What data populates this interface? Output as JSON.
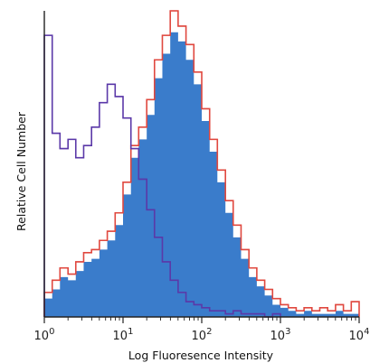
{
  "chart_data": {
    "type": "area",
    "title": "",
    "xlabel": "Log Fluoresence Intensity",
    "ylabel": "Relative Cell Number",
    "x_scale": "log",
    "xlim": [
      1,
      10000
    ],
    "ylim": [
      0,
      100
    ],
    "x_ticks": [
      {
        "value": 1,
        "base": "10",
        "exp": "0"
      },
      {
        "value": 10,
        "base": "10",
        "exp": "1"
      },
      {
        "value": 100,
        "base": "10",
        "exp": "2"
      },
      {
        "value": 1000,
        "base": "10",
        "exp": "3"
      },
      {
        "value": 10000,
        "base": "10",
        "exp": "4"
      }
    ],
    "grid": false,
    "legend": "none",
    "series": [
      {
        "color": "#3a7ccb",
        "style": "filled",
        "x": [
          1.0,
          1.26,
          1.58,
          2.0,
          2.51,
          3.16,
          3.98,
          5.01,
          6.31,
          7.94,
          10.0,
          12.6,
          15.8,
          20.0,
          25.1,
          31.6,
          39.8,
          50.1,
          63.1,
          79.4,
          100,
          126,
          158,
          200,
          251,
          316,
          398,
          501,
          631,
          794,
          1000,
          1259,
          1585,
          1995,
          2512,
          3162,
          3981,
          5012,
          6310,
          7943,
          10000
        ],
        "values": [
          6,
          9,
          13,
          12,
          15,
          18,
          19,
          22,
          25,
          30,
          40,
          52,
          58,
          66,
          78,
          86,
          93,
          90,
          84,
          76,
          64,
          54,
          44,
          34,
          26,
          19,
          13,
          10,
          7,
          4,
          3,
          2,
          1,
          2,
          1,
          1,
          1,
          2,
          1,
          1,
          0
        ]
      },
      {
        "color": "#e0483f",
        "style": "outline",
        "x": [
          1.0,
          1.26,
          1.58,
          2.0,
          2.51,
          3.16,
          3.98,
          5.01,
          6.31,
          7.94,
          10.0,
          12.6,
          15.8,
          20.0,
          25.1,
          31.6,
          39.8,
          50.1,
          63.1,
          79.4,
          100,
          126,
          158,
          200,
          251,
          316,
          398,
          501,
          631,
          794,
          1000,
          1259,
          1585,
          1995,
          2512,
          3162,
          3981,
          5012,
          6310,
          7943,
          10000
        ],
        "values": [
          8,
          12,
          16,
          14,
          18,
          21,
          22,
          25,
          28,
          34,
          44,
          56,
          62,
          71,
          84,
          92,
          100,
          95,
          89,
          80,
          68,
          58,
          48,
          38,
          30,
          22,
          16,
          12,
          9,
          6,
          4,
          3,
          2,
          3,
          2,
          3,
          2,
          4,
          2,
          5,
          0
        ]
      },
      {
        "color": "#5b39a8",
        "style": "outline",
        "x": [
          1.0,
          1.26,
          1.58,
          2.0,
          2.51,
          3.16,
          3.98,
          5.01,
          6.31,
          7.94,
          10.0,
          12.6,
          15.8,
          20.0,
          25.1,
          31.6,
          39.8,
          50.1,
          63.1,
          79.4,
          100,
          126,
          158,
          200,
          251,
          316,
          398,
          501,
          631,
          794,
          1000
        ],
        "values": [
          92,
          60,
          55,
          58,
          52,
          56,
          62,
          70,
          76,
          72,
          65,
          55,
          45,
          35,
          26,
          18,
          12,
          8,
          5,
          4,
          3,
          2,
          2,
          1,
          2,
          1,
          1,
          1,
          0,
          1,
          0
        ]
      }
    ]
  }
}
